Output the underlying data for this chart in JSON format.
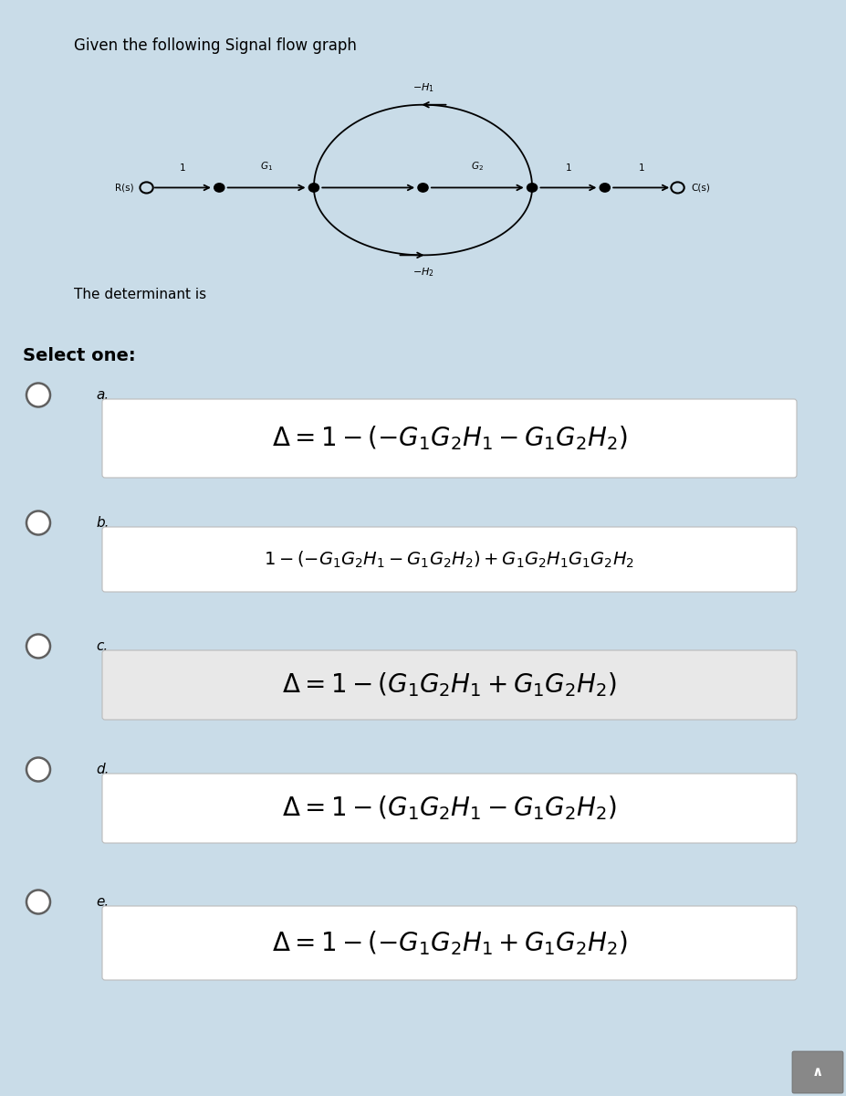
{
  "bg_outer": "#c9dce8",
  "bg_top_panel": "#dce8f2",
  "bg_white": "#ffffff",
  "title": "Given the following Signal flow graph",
  "subtitle": "The determinant is",
  "select_one": "Select one:",
  "options": [
    {
      "label": "a.",
      "formula_a": "$\\Delta = 1 - (-G_1G_2H_1 - G_1G_2H_2)$",
      "font": 20
    },
    {
      "label": "b.",
      "formula_b": "$1 - (-G_1G_2H_1 - G_1G_2H_2)+G_1G_2H_1G_1G_2H_2$",
      "font": 14
    },
    {
      "label": "c.",
      "formula_c": "$\\Delta = 1 - (G_1G_2H_1 + G_1G_2H_2)$",
      "font": 20
    },
    {
      "label": "d.",
      "formula_d": "$\\Delta = 1 - (G_1G_2H_1 - G_1G_2H_2)$",
      "font": 20
    },
    {
      "label": "e.",
      "formula_e": "$\\Delta = 1 - (-G_1G_2H_1 + G_1G_2H_2)$",
      "font": 20
    }
  ],
  "formulas": [
    "$\\Delta = 1 - (-G_1G_2H_1 - G_1G_2H_2)$",
    "$1 - (-G_1G_2H_1 - G_1G_2H_2)+G_1G_2H_1G_1G_2H_2$",
    "$\\Delta = 1 - (G_1G_2H_1 + G_1G_2H_2)$",
    "$\\Delta = 1 - (G_1G_2H_1 - G_1G_2H_2)$",
    "$\\Delta = 1 - (-G_1G_2H_1 + G_1G_2H_2)$"
  ],
  "formula_fonts": [
    20,
    14,
    20,
    20,
    20
  ],
  "labels": [
    "a.",
    "b.",
    "c.",
    "d.",
    "e."
  ],
  "box_bg": [
    "#ffffff",
    "#ffffff",
    "#e8e8e8",
    "#ffffff",
    "#ffffff"
  ]
}
